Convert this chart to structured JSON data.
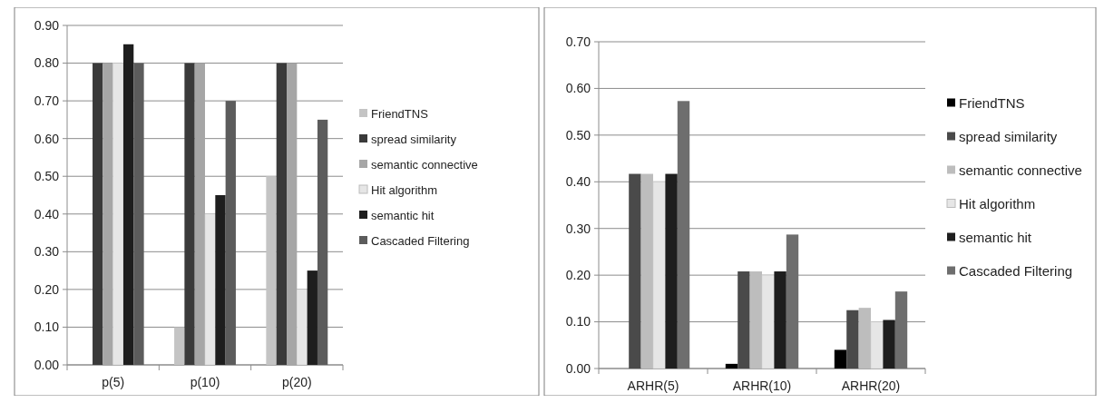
{
  "chart_data": [
    {
      "type": "bar",
      "categories": [
        "p(5)",
        "p(10)",
        "p(20)"
      ],
      "ylim": [
        0,
        0.9
      ],
      "yticks": [
        {
          "value": 0,
          "label": "0.00"
        },
        {
          "value": 0.1,
          "label": "0.10"
        },
        {
          "value": 0.2,
          "label": "0.20"
        },
        {
          "value": 0.3,
          "label": "0.30"
        },
        {
          "value": 0.4,
          "label": "0.40"
        },
        {
          "value": 0.5,
          "label": "0.50"
        },
        {
          "value": 0.6,
          "label": "0.60"
        },
        {
          "value": 0.7,
          "label": "0.70"
        },
        {
          "value": 0.8,
          "label": "0.80"
        },
        {
          "value": 0.9,
          "label": "0.90"
        }
      ],
      "grid": "y",
      "legend": "right",
      "series": [
        {
          "name": "FriendTNS",
          "color": "#c4c4c4",
          "values": [
            0,
            0.1,
            0.5
          ]
        },
        {
          "name": "spread similarity",
          "color": "#3a3a3a",
          "values": [
            0.8,
            0.8,
            0.8
          ]
        },
        {
          "name": "semantic connective",
          "color": "#a6a6a6",
          "values": [
            0.8,
            0.8,
            0.8
          ]
        },
        {
          "name": "Hit algorithm",
          "color": "#e6e6e6",
          "values": [
            0.8,
            0.4,
            0.2
          ]
        },
        {
          "name": "semantic hit",
          "color": "#1e1e1e",
          "values": [
            0.85,
            0.45,
            0.25
          ]
        },
        {
          "name": "Cascaded Filtering",
          "color": "#5c5c5c",
          "values": [
            0.8,
            0.7,
            0.65
          ]
        }
      ]
    },
    {
      "type": "bar",
      "categories": [
        "ARHR(5)",
        "ARHR(10)",
        "ARHR(20)"
      ],
      "ylim": [
        0,
        0.7
      ],
      "yticks": [
        {
          "value": 0,
          "label": "0.00"
        },
        {
          "value": 0.1,
          "label": "0.10"
        },
        {
          "value": 0.2,
          "label": "0.20"
        },
        {
          "value": 0.3,
          "label": "0.30"
        },
        {
          "value": 0.4,
          "label": "0.40"
        },
        {
          "value": 0.5,
          "label": "0.50"
        },
        {
          "value": 0.6,
          "label": "0.60"
        },
        {
          "value": 0.7,
          "label": "0.70"
        }
      ],
      "grid": "y",
      "legend": "right",
      "series": [
        {
          "name": "FriendTNS",
          "color": "#000000",
          "values": [
            0,
            0.01,
            0.04
          ]
        },
        {
          "name": "spread similarity",
          "color": "#4a4a4a",
          "values": [
            0.417,
            0.208,
            0.125
          ]
        },
        {
          "name": "semantic connective",
          "color": "#bdbdbd",
          "values": [
            0.417,
            0.208,
            0.13
          ]
        },
        {
          "name": "Hit algorithm",
          "color": "#e6e6e6",
          "values": [
            0.4,
            0.2,
            0.1
          ]
        },
        {
          "name": "semantic hit",
          "color": "#1e1e1e",
          "values": [
            0.417,
            0.208,
            0.104
          ]
        },
        {
          "name": "Cascaded Filtering",
          "color": "#6e6e6e",
          "values": [
            0.573,
            0.287,
            0.165
          ]
        }
      ]
    }
  ]
}
